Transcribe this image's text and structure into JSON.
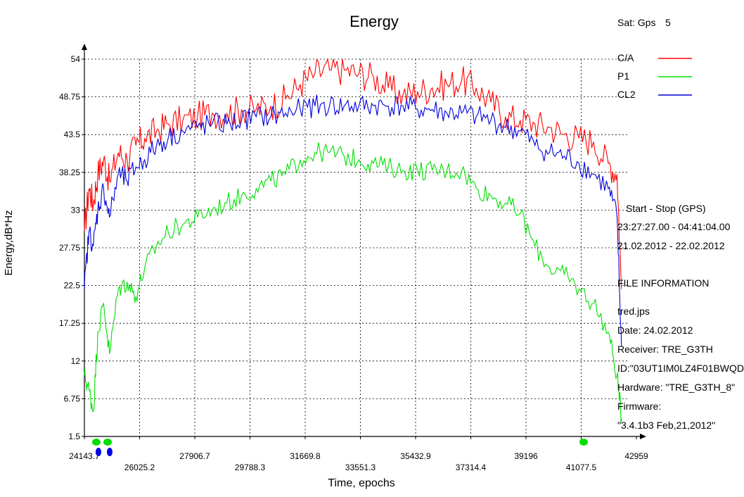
{
  "sidebar": {
    "sat_label": "Sat: Gps",
    "sat_number": "5",
    "interval_title": "Start  -  Stop  (GPS)",
    "time_range": "23:27:27.00 - 04:41:04.00",
    "date_range": "21.02.2012 - 22.02.2012",
    "file_info_title": "FILE INFORMATION",
    "file_name": "tred.jps",
    "date_line": "Date: 24.02.2012",
    "receiver_line": "Receiver: TRE_G3TH",
    "id_line": "ID:\"03UT1IM0LZ4F01BWQD",
    "hardware_line": "Hardware: \"TRE_G3TH_8\"",
    "firmware_label": "Firmware:",
    "firmware_value": "\"3.4.1b3 Feb,21,2012\""
  },
  "chart_data": {
    "type": "line",
    "title": "Energy",
    "xlabel": "Time, epochs",
    "ylabel": "Energy,dB*Hz",
    "xlim": [
      24143.7,
      42959
    ],
    "ylim": [
      1.5,
      54
    ],
    "grid": true,
    "legend_position": "top-right",
    "x_ticks_upper": [
      "24143.7",
      "27906.7",
      "31669.8",
      "35432.9",
      "39196",
      "42959"
    ],
    "x_ticks_lower": [
      "26025.2",
      "29788.3",
      "33551.3",
      "37314.4",
      "41077.5"
    ],
    "y_ticks": [
      "54",
      "48.75",
      "43.5",
      "38.25",
      "33",
      "27.75",
      "22.5",
      "17.25",
      "12",
      "6.75",
      "1.5"
    ],
    "series": [
      {
        "name": "C/A",
        "color": "#ff0000",
        "x": [
          24143.7,
          24300,
          24450,
          24600,
          24800,
          25000,
          25300,
          25600,
          25900,
          26200,
          26600,
          27000,
          27500,
          28000,
          28500,
          29000,
          29500,
          30000,
          30500,
          31000,
          31500,
          32000,
          32500,
          33000,
          33500,
          34000,
          34500,
          35000,
          35500,
          36000,
          36500,
          37000,
          37500,
          38000,
          38500,
          39000,
          39500,
          40000,
          40500,
          41000,
          41500,
          42000,
          42300,
          42450
        ],
        "y": [
          30,
          36,
          34,
          38,
          40,
          37,
          41,
          40,
          42,
          43,
          44,
          45,
          45.5,
          46,
          46.5,
          46.5,
          47,
          47,
          47.5,
          48.5,
          50.5,
          52,
          52.5,
          52.5,
          52,
          51.5,
          50,
          49,
          49.5,
          50,
          50.5,
          51,
          50,
          48,
          46,
          45.5,
          45,
          44.5,
          43.5,
          43,
          42.5,
          39.5,
          38,
          22
        ]
      },
      {
        "name": "P1",
        "color": "#00e000",
        "x": [
          24143.7,
          24300,
          24450,
          24600,
          24800,
          25000,
          25300,
          25600,
          25900,
          26200,
          26600,
          27000,
          27500,
          28000,
          28500,
          29000,
          29500,
          30000,
          30500,
          31000,
          31500,
          32000,
          32500,
          33000,
          33500,
          34000,
          34500,
          35000,
          35500,
          36000,
          36500,
          37000,
          37500,
          38000,
          38500,
          39000,
          39500,
          40000,
          40500,
          41000,
          41500,
          42000,
          42300,
          42450
        ],
        "y": [
          10,
          8,
          5,
          16,
          20,
          13,
          22,
          23,
          21,
          25,
          28,
          30,
          31,
          32,
          33,
          34,
          35,
          36,
          37,
          38,
          40,
          41,
          41,
          40.5,
          40,
          39.5,
          39,
          38.5,
          38.5,
          38.5,
          38.5,
          38.5,
          36,
          35,
          34,
          32.5,
          28,
          25,
          24,
          22,
          20,
          16,
          10,
          4
        ]
      },
      {
        "name": "CL2",
        "color": "#0000dd",
        "x": [
          24143.7,
          24300,
          24450,
          24600,
          24800,
          25000,
          25300,
          25600,
          25900,
          26200,
          26600,
          27000,
          27500,
          28000,
          28500,
          29000,
          29500,
          30000,
          30500,
          31000,
          31500,
          32000,
          32500,
          33000,
          33500,
          34000,
          34500,
          35000,
          35500,
          36000,
          36500,
          37000,
          37500,
          38000,
          38500,
          39000,
          39500,
          40000,
          40500,
          41000,
          41500,
          42000,
          42300,
          42450
        ],
        "y": [
          22,
          30,
          28,
          33,
          36,
          32,
          38,
          37,
          39,
          40,
          42,
          43,
          44,
          44.5,
          45,
          45,
          45.5,
          46,
          46,
          46.5,
          47,
          47.5,
          47.5,
          47.5,
          47.5,
          47.5,
          47.5,
          47.5,
          47,
          47,
          46.5,
          46.5,
          46,
          45.5,
          44.5,
          44,
          42,
          41,
          40.5,
          39.5,
          38,
          36,
          32,
          14
        ]
      }
    ]
  }
}
